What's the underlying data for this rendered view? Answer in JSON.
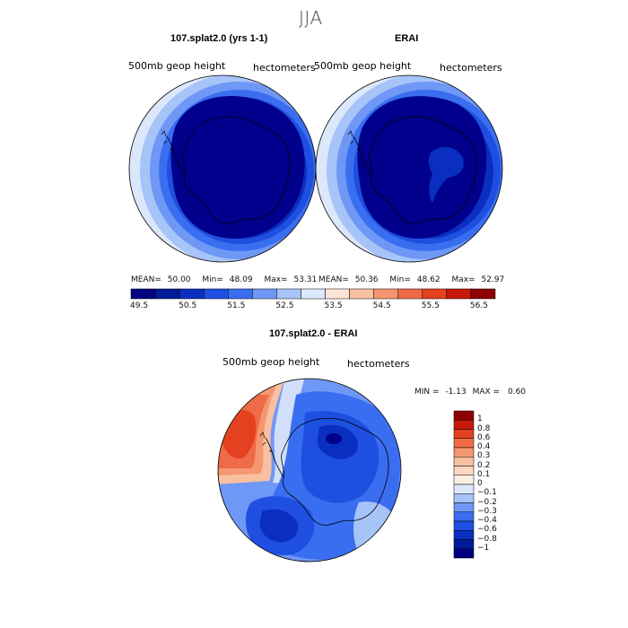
{
  "page_title": "JJA",
  "panels": [
    {
      "title": "107.splat2.0 (yrs 1-1)",
      "left_label": "500mb geop height",
      "right_label": "hectometers",
      "stats": {
        "mean_label": "MEAN=",
        "mean": "50.00",
        "min_label": "Min=",
        "min": "48.09",
        "max_label": "Max=",
        "max": "53.31"
      }
    },
    {
      "title": "ERAI",
      "left_label": "500mb geop height",
      "right_label": "hectometers",
      "stats": {
        "mean_label": "MEAN=",
        "mean": "50.36",
        "min_label": "Min=",
        "min": "48.62",
        "max_label": "Max=",
        "max": "52.97"
      }
    }
  ],
  "colorbar_top": {
    "ticks": [
      "49.5",
      "50.5",
      "51.5",
      "52.5",
      "53.5",
      "54.5",
      "55.5",
      "56.5"
    ],
    "colors": [
      "#000080",
      "#001a9a",
      "#0a2fc0",
      "#1e4fe0",
      "#3a6ef0",
      "#6f97f5",
      "#a7c4f8",
      "#dbe7fb",
      "#fbe5d6",
      "#f8c0a0",
      "#f49770",
      "#ef6a46",
      "#e3411f",
      "#c61a0a",
      "#8e0000"
    ]
  },
  "diff_panel": {
    "title": "107.splat2.0 - ERAI",
    "left_label": "500mb geop height",
    "right_label": "hectometers",
    "min_label": "MIN =",
    "min": "-1.13",
    "max_label": "MAX =",
    "max": "0.60"
  },
  "colorbar_diff": {
    "ticks": [
      "1",
      "0.8",
      "0.6",
      "0.4",
      "0.3",
      "0.2",
      "0.1",
      "0",
      "−0.1",
      "−0.2",
      "−0.3",
      "−0.4",
      "−0.6",
      "−0.8",
      "−1"
    ],
    "colors": [
      "#8e0000",
      "#c61a0a",
      "#e3411f",
      "#ef6a46",
      "#f49770",
      "#f8c0a0",
      "#fbd8c4",
      "#fbeee3",
      "#dbe7fb",
      "#a7c4f8",
      "#6f97f5",
      "#3a6ef0",
      "#1e4fe0",
      "#0a2fc0",
      "#001a9a",
      "#000080"
    ]
  },
  "colors": {
    "deep_navy": "#00008c",
    "mid_blue": "#1e4fe0",
    "light_blue": "#6f97f5",
    "pale_blue": "#dbe7fb",
    "warm_red": "#ef6a46",
    "dark_red": "#c61a0a"
  }
}
